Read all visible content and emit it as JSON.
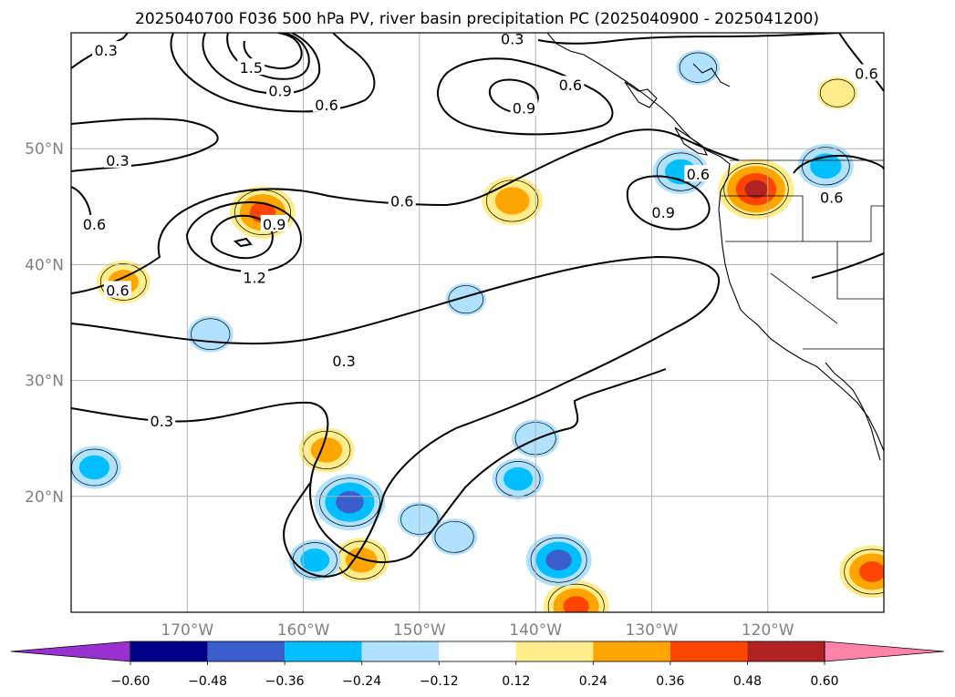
{
  "title": "2025040700 F036 500 hPa PV, river basin precipitation PC (2025040900 - 2025041200)",
  "map": {
    "lon_range": [
      -180,
      -110
    ],
    "lat_range": [
      10,
      60
    ],
    "lon_ticks": [
      {
        "lon": -170,
        "label": "170°W"
      },
      {
        "lon": -160,
        "label": "160°W"
      },
      {
        "lon": -150,
        "label": "150°W"
      },
      {
        "lon": -140,
        "label": "140°W"
      },
      {
        "lon": -130,
        "label": "130°W"
      },
      {
        "lon": -120,
        "label": "120°W"
      }
    ],
    "lat_ticks": [
      {
        "lat": 20,
        "label": "20°N"
      },
      {
        "lat": 30,
        "label": "30°N"
      },
      {
        "lat": 40,
        "label": "40°N"
      },
      {
        "lat": 50,
        "label": "50°N"
      }
    ],
    "gridlines": true
  },
  "colorbar": {
    "levels": [
      "−0.60",
      "−0.48",
      "−0.36",
      "−0.24",
      "−0.12",
      "0.12",
      "0.24",
      "0.36",
      "0.48",
      "0.60"
    ],
    "colors": [
      "#9b30d0",
      "#00008b",
      "#3a5fcd",
      "#00bfff",
      "#b0e2ff",
      "#ffffff",
      "#ffec8b",
      "#ffa500",
      "#ff4500",
      "#b22222",
      "#ff82ab"
    ],
    "extend": "both"
  },
  "contour_labels": [
    {
      "text": "0.3",
      "lon": -177,
      "lat": 58.5
    },
    {
      "text": "1.5",
      "lon": -164.5,
      "lat": 57
    },
    {
      "text": "0.9",
      "lon": -162,
      "lat": 55
    },
    {
      "text": "0.6",
      "lon": -158,
      "lat": 53.8
    },
    {
      "text": "0.3",
      "lon": -142,
      "lat": 59.5
    },
    {
      "text": "0.6",
      "lon": -137,
      "lat": 55.5
    },
    {
      "text": "0.9",
      "lon": -141,
      "lat": 53.5
    },
    {
      "text": "0.6",
      "lon": -111.5,
      "lat": 56.5
    },
    {
      "text": "0.3",
      "lon": -176,
      "lat": 49
    },
    {
      "text": "0.6",
      "lon": -178,
      "lat": 43.5
    },
    {
      "text": "0.6",
      "lon": -151.5,
      "lat": 45.5
    },
    {
      "text": "0.9",
      "lon": -162.5,
      "lat": 43.5
    },
    {
      "text": "1.2",
      "lon": -164.2,
      "lat": 38.9
    },
    {
      "text": "0.6",
      "lon": -126,
      "lat": 47.8
    },
    {
      "text": "0.9",
      "lon": -129,
      "lat": 44.5
    },
    {
      "text": "0.6",
      "lon": -114.5,
      "lat": 45.8
    },
    {
      "text": "0.6",
      "lon": -176,
      "lat": 37.8
    },
    {
      "text": "0.3",
      "lon": -156.5,
      "lat": 31.7
    },
    {
      "text": "0.3",
      "lon": -172.2,
      "lat": 26.5
    }
  ],
  "chart_data": {
    "type": "map",
    "title": "2025040700 F036 500 hPa PV, river basin precipitation PC (2025040900 - 2025041200)",
    "xlim": [
      -180,
      -110
    ],
    "ylim": [
      10,
      60
    ],
    "contour_field": "500 hPa PV",
    "contour_levels": [
      0.3,
      0.6,
      0.9,
      1.2,
      1.5
    ],
    "shaded_field": "river basin precipitation PC",
    "shaded_levels": [
      -0.6,
      -0.48,
      -0.36,
      -0.24,
      -0.12,
      0.12,
      0.24,
      0.36,
      0.48,
      0.6
    ],
    "positive_regions": [
      {
        "center": [
          -121,
          46.5
        ],
        "peak": 0.5
      },
      {
        "center": [
          -163.5,
          44.5
        ],
        "peak": 0.4
      },
      {
        "center": [
          -142,
          45.5
        ],
        "peak": 0.35
      },
      {
        "center": [
          -175.5,
          38.5
        ],
        "peak": 0.28
      },
      {
        "center": [
          -155,
          14.5
        ],
        "peak": 0.3
      },
      {
        "center": [
          -158,
          24
        ],
        "peak": 0.3
      },
      {
        "center": [
          -136.5,
          10.5
        ],
        "peak": 0.4
      },
      {
        "center": [
          -111,
          13.5
        ],
        "peak": 0.4
      },
      {
        "center": [
          -114,
          54.8
        ],
        "peak": 0.15
      }
    ],
    "negative_regions": [
      {
        "center": [
          -156,
          19.5
        ],
        "peak": -0.45
      },
      {
        "center": [
          -138,
          14.5
        ],
        "peak": -0.4
      },
      {
        "center": [
          -115,
          48.5
        ],
        "peak": -0.3
      },
      {
        "center": [
          -127.5,
          48
        ],
        "peak": -0.3
      },
      {
        "center": [
          -178,
          22.5
        ],
        "peak": -0.28
      },
      {
        "center": [
          -159,
          14.5
        ],
        "peak": -0.26
      },
      {
        "center": [
          -140,
          25
        ],
        "peak": -0.22
      },
      {
        "center": [
          -141.5,
          21.5
        ],
        "peak": -0.26
      },
      {
        "center": [
          -168,
          34
        ],
        "peak": -0.2
      },
      {
        "center": [
          -150,
          18
        ],
        "peak": -0.18
      },
      {
        "center": [
          -147,
          16.5
        ],
        "peak": -0.2
      },
      {
        "center": [
          -146,
          37
        ],
        "peak": -0.15
      },
      {
        "center": [
          -126,
          57
        ],
        "peak": -0.18
      }
    ]
  }
}
